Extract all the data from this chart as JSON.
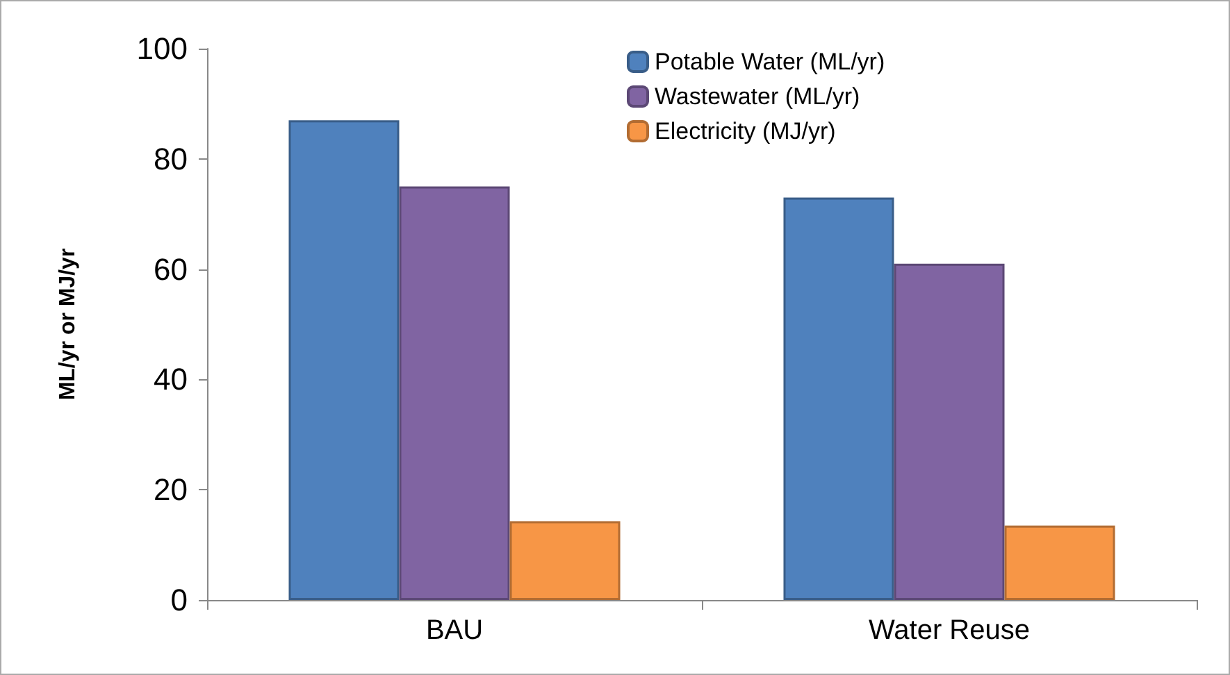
{
  "chart_data": {
    "type": "bar",
    "ylabel": "ML/yr or MJ/yr",
    "categories": [
      "BAU",
      "Water Reuse"
    ],
    "series": [
      {
        "name": "Potable Water (ML/yr)",
        "color": "#4f81bd",
        "values": [
          87,
          73
        ]
      },
      {
        "name": "Wastewater (ML/yr)",
        "color": "#8064a2",
        "values": [
          75,
          61
        ]
      },
      {
        "name": "Electricity (MJ/yr)",
        "color": "#f79646",
        "values": [
          14.3,
          13.5
        ]
      }
    ],
    "ylim": [
      0,
      100
    ],
    "yticks": [
      0,
      20,
      40,
      60,
      80,
      100
    ],
    "grid": false,
    "legend": "top right"
  }
}
